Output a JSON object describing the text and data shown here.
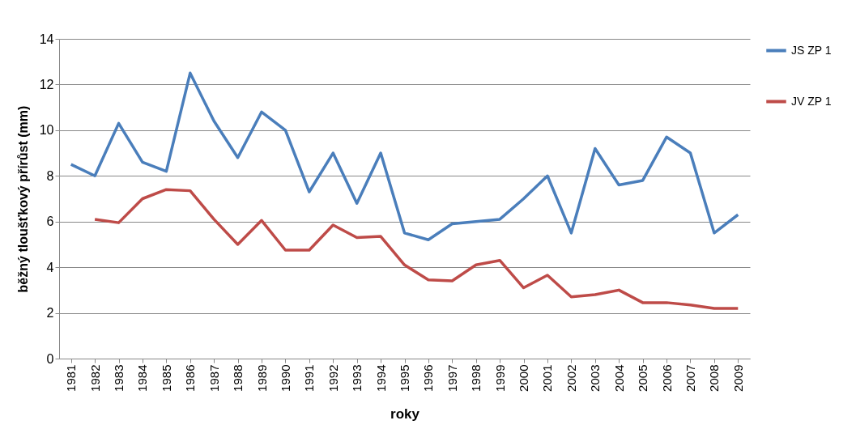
{
  "chart_data": {
    "type": "line",
    "xlabel": "roky",
    "ylabel": "běžný tloušťkový přírůst (mm)",
    "categories": [
      "1981",
      "1982",
      "1983",
      "1984",
      "1985",
      "1986",
      "1987",
      "1988",
      "1989",
      "1990",
      "1991",
      "1992",
      "1993",
      "1994",
      "1995",
      "1996",
      "1997",
      "1998",
      "1999",
      "2000",
      "2001",
      "2002",
      "2003",
      "2004",
      "2005",
      "2006",
      "2007",
      "2008",
      "2009"
    ],
    "series": [
      {
        "name": "JS ZP 1",
        "color": "#4a7ebb",
        "values": [
          8.5,
          8.0,
          10.3,
          8.6,
          8.2,
          12.5,
          10.4,
          8.8,
          10.8,
          10.0,
          7.3,
          9.0,
          6.8,
          9.0,
          5.5,
          5.2,
          5.9,
          6.0,
          6.1,
          7.0,
          8.0,
          5.5,
          9.2,
          7.6,
          7.8,
          9.7,
          9.0,
          5.5,
          6.3
        ]
      },
      {
        "name": "JV ZP 1",
        "color": "#be4b48",
        "values": [
          null,
          6.1,
          5.95,
          7.0,
          7.4,
          7.35,
          6.1,
          5.0,
          6.05,
          4.75,
          4.75,
          5.85,
          5.3,
          5.35,
          4.1,
          3.45,
          3.4,
          4.1,
          4.3,
          3.1,
          3.65,
          2.7,
          2.8,
          3.0,
          2.45,
          2.45,
          2.35,
          2.2,
          2.2
        ]
      }
    ],
    "ylim": [
      0,
      14
    ],
    "yticks": [
      0,
      2,
      4,
      6,
      8,
      10,
      12,
      14
    ],
    "grid": "y",
    "legend": "right",
    "marker": "none",
    "line_style": "solid"
  }
}
